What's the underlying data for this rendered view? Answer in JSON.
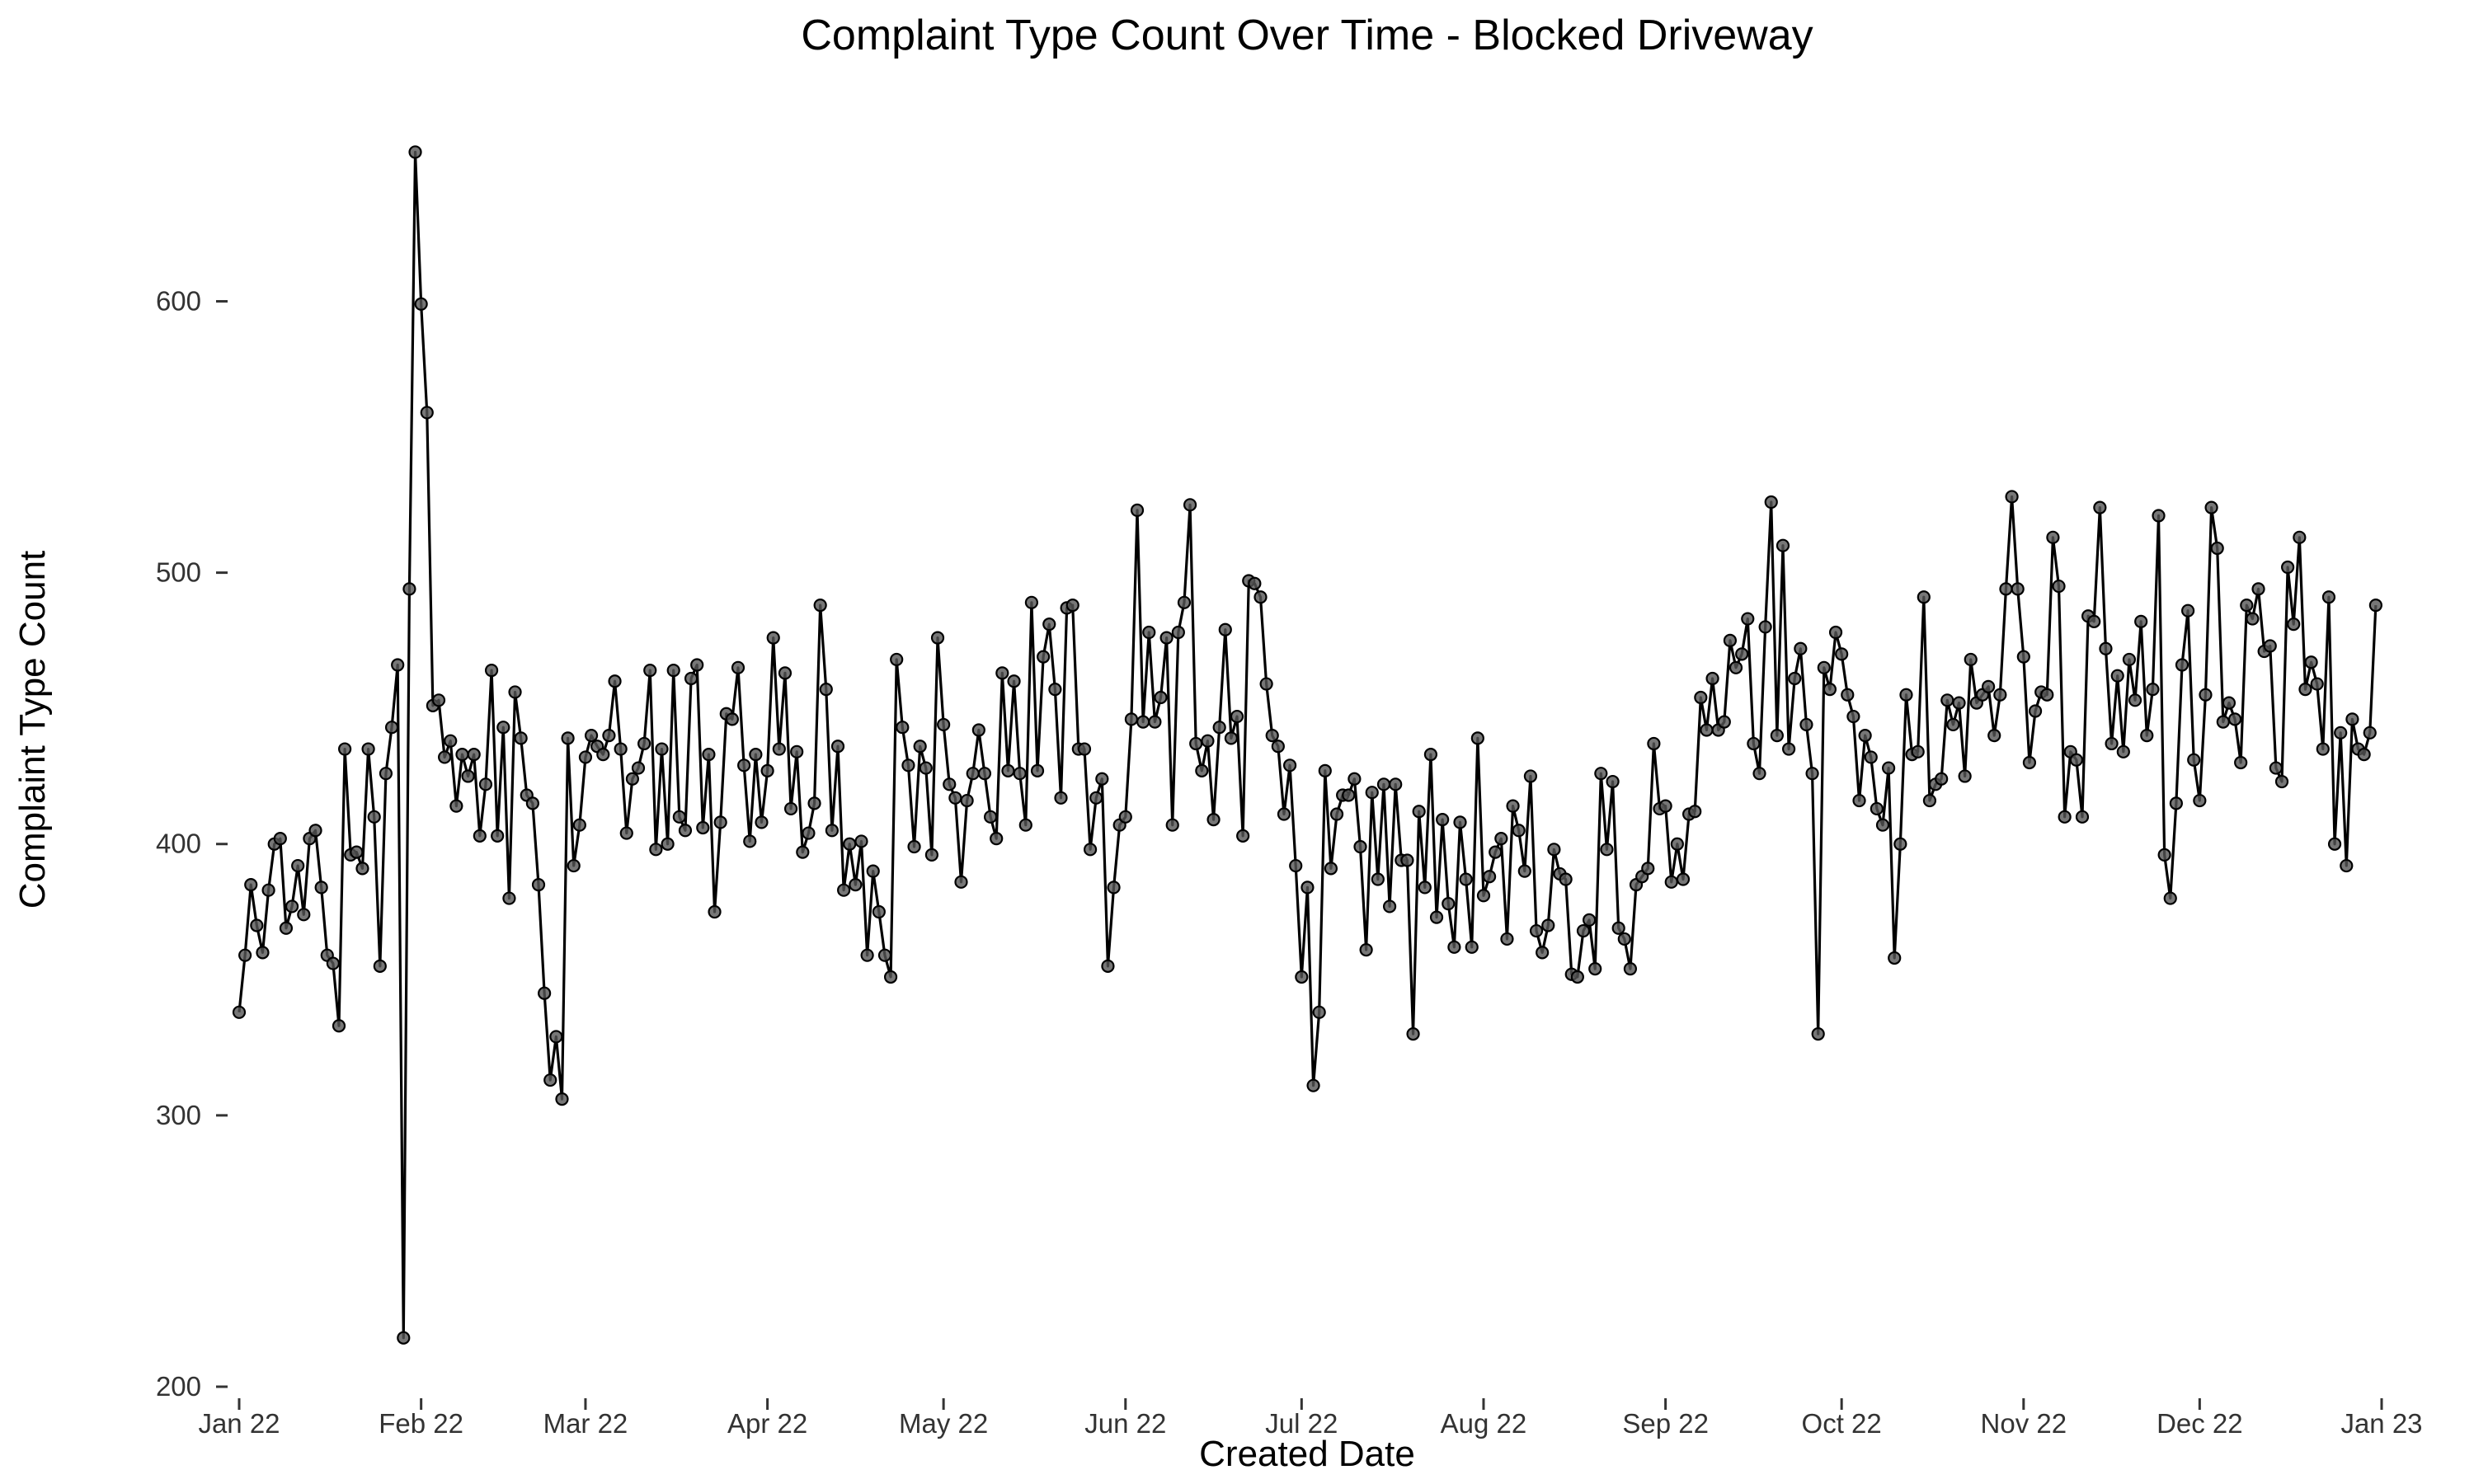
{
  "chart_data": {
    "type": "line",
    "title": "Complaint Type Count Over Time - Blocked Driveway",
    "xlabel": "Created Date",
    "ylabel": "Complaint Type Count",
    "x_start": "2022-01-01",
    "x_end": "2022-12-31",
    "xlim": [
      "2022-01-01",
      "2023-01-01"
    ],
    "ylim": [
      200,
      660
    ],
    "grid": false,
    "legend": "none",
    "x_ticks": [
      {
        "date": "2022-01-01",
        "label": "Jan 22"
      },
      {
        "date": "2022-02-01",
        "label": "Feb 22"
      },
      {
        "date": "2022-03-01",
        "label": "Mar 22"
      },
      {
        "date": "2022-04-01",
        "label": "Apr 22"
      },
      {
        "date": "2022-05-01",
        "label": "May 22"
      },
      {
        "date": "2022-06-01",
        "label": "Jun 22"
      },
      {
        "date": "2022-07-01",
        "label": "Jul 22"
      },
      {
        "date": "2022-08-01",
        "label": "Aug 22"
      },
      {
        "date": "2022-09-01",
        "label": "Sep 22"
      },
      {
        "date": "2022-10-01",
        "label": "Oct 22"
      },
      {
        "date": "2022-11-01",
        "label": "Nov 22"
      },
      {
        "date": "2022-12-01",
        "label": "Dec 22"
      },
      {
        "date": "2023-01-01",
        "label": "Jan 23"
      }
    ],
    "y_ticks": [
      200,
      300,
      400,
      500,
      600
    ],
    "colors": {
      "line": "#000000",
      "point": "#555555",
      "tick": "#333333"
    },
    "series": [
      {
        "values": [
          338,
          359,
          385,
          370,
          360,
          383,
          400,
          402,
          369,
          377,
          392,
          374,
          402,
          405,
          384,
          359,
          356,
          333,
          435,
          396,
          397,
          391,
          435,
          410,
          355,
          426,
          443,
          466,
          218,
          494,
          655,
          599,
          559,
          451,
          453,
          432,
          438,
          414,
          433,
          425,
          433,
          403,
          422,
          464,
          403,
          443,
          380,
          456,
          439,
          418,
          415,
          385,
          345,
          313,
          329,
          306,
          439,
          392,
          407,
          432,
          440,
          436,
          433,
          440,
          460,
          435,
          404,
          424,
          428,
          437,
          464,
          398,
          435,
          400,
          464,
          410,
          405,
          461,
          466,
          406,
          433,
          375,
          408,
          448,
          446,
          465,
          429,
          401,
          433,
          408,
          427,
          476,
          435,
          463,
          413,
          434,
          397,
          404,
          415,
          488,
          457,
          405,
          436,
          383,
          400,
          385,
          401,
          359,
          390,
          375,
          359,
          351,
          468,
          443,
          429,
          399,
          436,
          428,
          396,
          476,
          444,
          422,
          417,
          386,
          416,
          426,
          442,
          426,
          410,
          402,
          463,
          427,
          460,
          426,
          407,
          489,
          427,
          469,
          481,
          457,
          417,
          487,
          488,
          435,
          435,
          398,
          417,
          424,
          355,
          384,
          407,
          410,
          446,
          523,
          445,
          478,
          445,
          454,
          476,
          407,
          478,
          489,
          525,
          437,
          427,
          438,
          409,
          443,
          479,
          439,
          447,
          403,
          497,
          496,
          491,
          459,
          440,
          436,
          411,
          429,
          392,
          351,
          384,
          311,
          338,
          427,
          391,
          411,
          418,
          418,
          424,
          399,
          361,
          419,
          387,
          422,
          377,
          422,
          394,
          394,
          330,
          412,
          384,
          433,
          373,
          409,
          378,
          362,
          408,
          387,
          362,
          439,
          381,
          388,
          397,
          402,
          365,
          414,
          405,
          390,
          425,
          368,
          360,
          370,
          398,
          389,
          387,
          352,
          351,
          368,
          372,
          354,
          426,
          398,
          423,
          369,
          365,
          354,
          385,
          388,
          391,
          437,
          413,
          414,
          386,
          400,
          387,
          411,
          412,
          454,
          442,
          461,
          442,
          445,
          475,
          465,
          470,
          483,
          437,
          426,
          480,
          526,
          440,
          510,
          435,
          461,
          472,
          444,
          426,
          330,
          465,
          457,
          478,
          470,
          455,
          447,
          416,
          440,
          432,
          413,
          407,
          428,
          358,
          400,
          455,
          433,
          434,
          491,
          416,
          422,
          424,
          453,
          444,
          452,
          425,
          468,
          452,
          455,
          458,
          440,
          455,
          494,
          528,
          494,
          469,
          430,
          449,
          456,
          455,
          513,
          495,
          410,
          434,
          431,
          410,
          484,
          482,
          524,
          472,
          437,
          462,
          434,
          468,
          453,
          482,
          440,
          457,
          521,
          396,
          380,
          415,
          466,
          486,
          431,
          416,
          455,
          524,
          509,
          445,
          452,
          446,
          430,
          488,
          483,
          494,
          471,
          473,
          428,
          423,
          502,
          481,
          513,
          457,
          467,
          459,
          435,
          491,
          400,
          441,
          392,
          446,
          435,
          433,
          441,
          488
        ]
      }
    ]
  }
}
